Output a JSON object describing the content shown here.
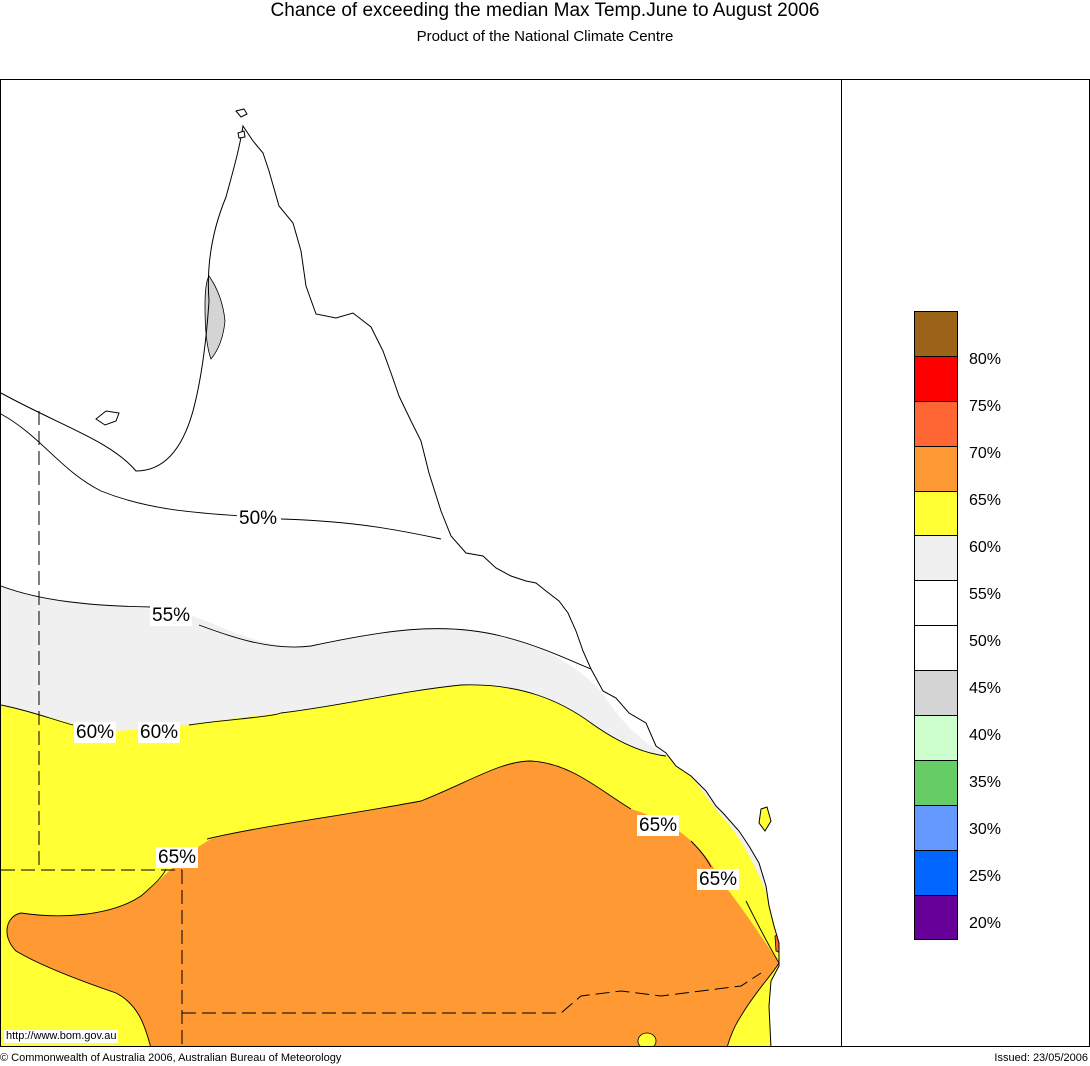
{
  "title": "Chance of exceeding the median Max Temp.June to August 2006",
  "subtitle": "Product of the National Climate Centre",
  "legend": {
    "colors": [
      "#9c6419",
      "#ff0000",
      "#ff6633",
      "#ff9933",
      "#ffff33",
      "#f0f0f0",
      "#ffffff",
      "#ffffff",
      "#d4d4d4",
      "#ccffcc",
      "#66cc66",
      "#6699ff",
      "#0066ff",
      "#660099"
    ],
    "labels": [
      "80%",
      "75%",
      "70%",
      "65%",
      "60%",
      "55%",
      "50%",
      "45%",
      "40%",
      "35%",
      "30%",
      "25%",
      "20%"
    ]
  },
  "contour_labels": [
    "50%",
    "55%",
    "60%",
    "60%",
    "65%",
    "65%",
    "65%"
  ],
  "map_fills": {
    "low_45": "#d4d4d4",
    "band_55": "#f0f0f0",
    "band_60": "#ffff33",
    "band_65": "#ff9933",
    "band_70": "#ff6633"
  },
  "url": "http://www.bom.gov.au",
  "copyright": "© Commonwealth of Australia 2006, Australian Bureau of Meteorology",
  "issued": "Issued: 23/05/2006"
}
